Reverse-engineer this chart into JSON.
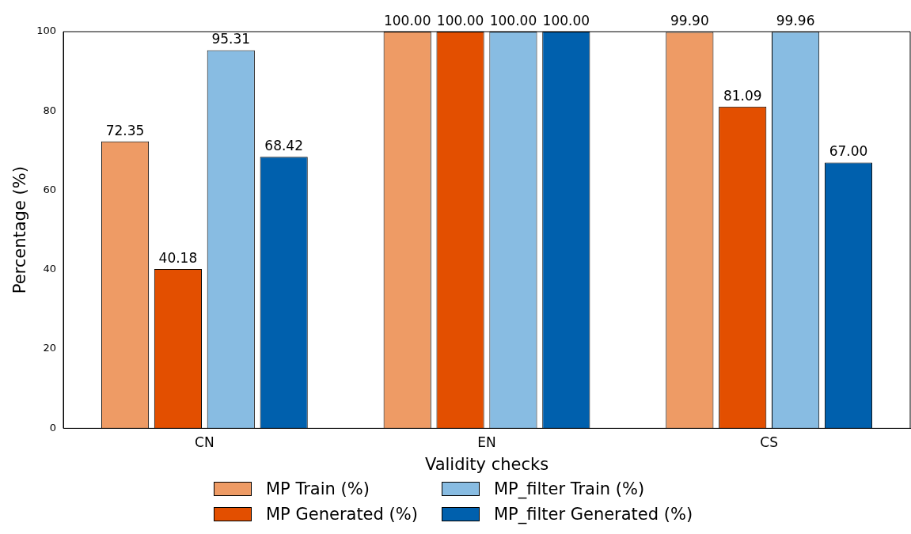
{
  "chart_data": {
    "type": "bar",
    "xlabel": "Validity checks",
    "ylabel": "Percentage (%)",
    "categories": [
      "CN",
      "EN",
      "CS"
    ],
    "series": [
      {
        "name": "MP Train (%)",
        "color": "#ee9b65",
        "values": [
          72.35,
          100.0,
          99.9
        ],
        "value_labels": [
          "72.35",
          "100.00",
          "99.90"
        ]
      },
      {
        "name": "MP Generated (%)",
        "color": "#e34f00",
        "values": [
          40.18,
          100.0,
          81.09
        ],
        "value_labels": [
          "40.18",
          "100.00",
          "81.09"
        ]
      },
      {
        "name": "MP_filter Train (%)",
        "color": "#88bce2",
        "values": [
          95.31,
          100.0,
          99.96
        ],
        "value_labels": [
          "95.31",
          "100.00",
          "99.96"
        ]
      },
      {
        "name": "MP_filter Generated (%)",
        "color": "#0060ad",
        "values": [
          68.42,
          100.0,
          67.0
        ],
        "value_labels": [
          "68.42",
          "100.00",
          "67.00"
        ]
      }
    ],
    "ylim": [
      0,
      100
    ],
    "yticks": [
      0,
      20,
      40,
      60,
      80,
      100
    ],
    "legend": "bottom"
  }
}
